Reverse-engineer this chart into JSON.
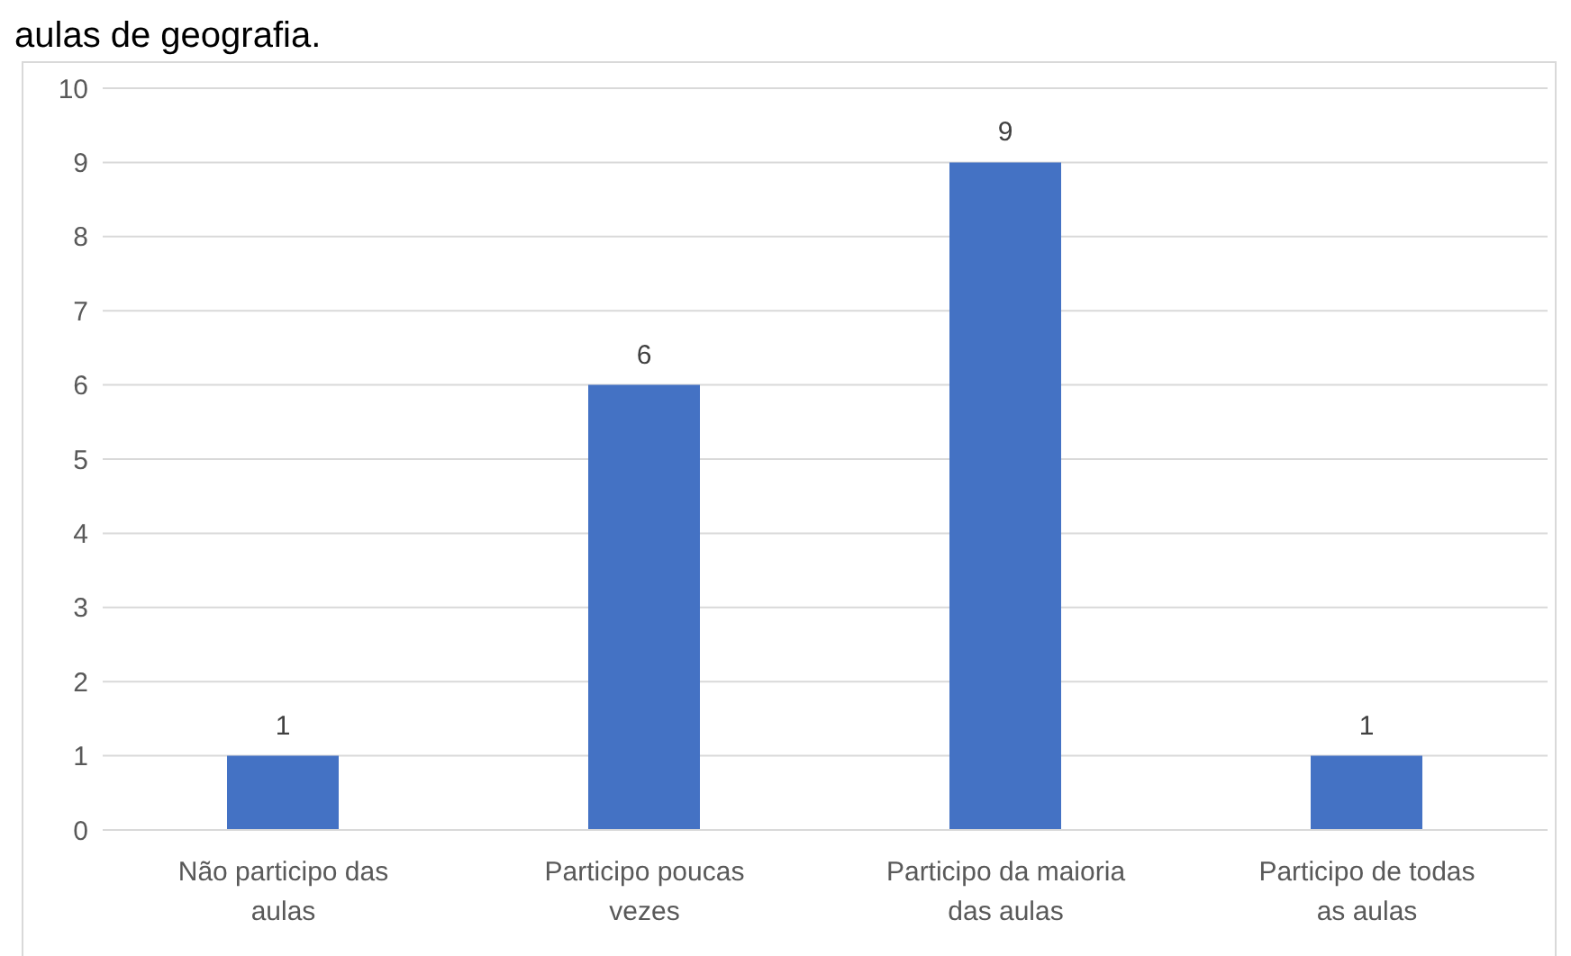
{
  "chart_data": {
    "type": "bar",
    "title": "aulas de geografia.",
    "categories": [
      "Não participo das aulas",
      "Participo poucas vezes",
      "Participo da maioria das aulas",
      "Participo de todas as aulas"
    ],
    "values": [
      1,
      6,
      9,
      1
    ],
    "color": "#4472c4",
    "ylim": [
      0,
      10
    ],
    "yticks": [
      0,
      1,
      2,
      3,
      4,
      5,
      6,
      7,
      8,
      9,
      10
    ],
    "grid": "y",
    "data_labels": true
  }
}
